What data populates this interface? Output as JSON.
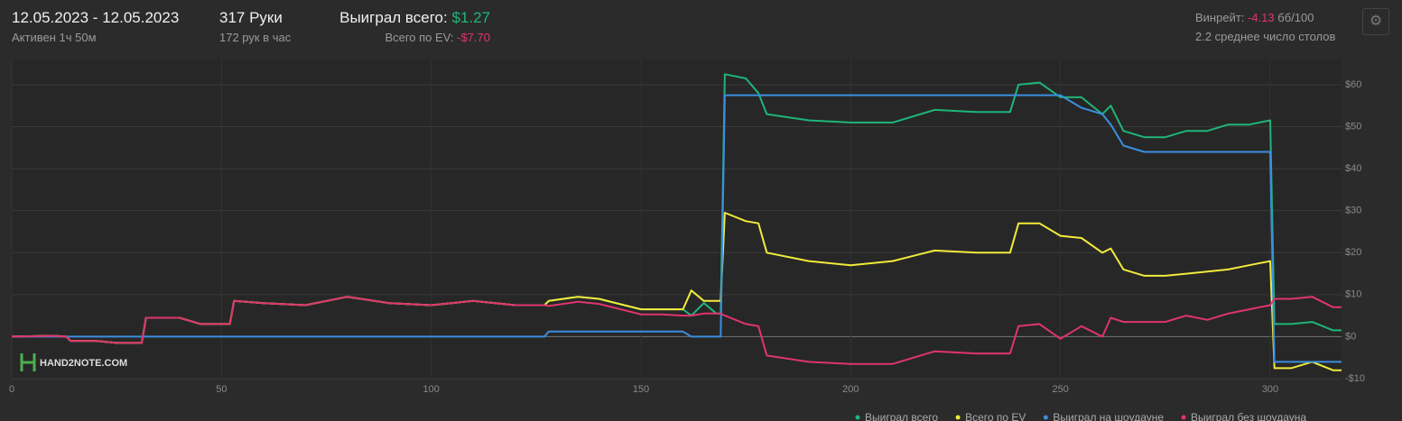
{
  "header": {
    "date_range": "12.05.2023 - 12.05.2023",
    "active": "Активен 1ч 50м",
    "hands": "317 Руки",
    "hands_per_hour": "172 рук в час",
    "won_label": "Выиграл всего:",
    "won_value": "$1.27",
    "ev_label": "Всего по EV:",
    "ev_value": "-$7.70",
    "winrate_label": "Винрейт:",
    "winrate_value": "-4.13",
    "winrate_unit": "бб/100",
    "tables": "2.2 среднее число столов"
  },
  "logo": "HAND2NOTE.COM",
  "chart_data": {
    "type": "line",
    "grid": true,
    "xlim": [
      0,
      317
    ],
    "xticks": [
      0,
      50,
      100,
      150,
      200,
      250,
      300
    ],
    "ylim": [
      -10,
      66
    ],
    "yticks": [
      {
        "value": -10,
        "label": "-$10"
      },
      {
        "value": 0,
        "label": "$0"
      },
      {
        "value": 10,
        "label": "$10"
      },
      {
        "value": 20,
        "label": "$20"
      },
      {
        "value": 30,
        "label": "$30"
      },
      {
        "value": 40,
        "label": "$40"
      },
      {
        "value": 50,
        "label": "$50"
      },
      {
        "value": 60,
        "label": "$60"
      }
    ],
    "x": [
      0,
      10,
      13,
      14,
      20,
      25,
      30,
      31,
      32,
      40,
      45,
      50,
      52,
      53,
      60,
      70,
      80,
      90,
      100,
      110,
      120,
      127,
      128,
      135,
      140,
      150,
      155,
      160,
      162,
      165,
      168,
      169,
      170,
      175,
      178,
      180,
      190,
      200,
      210,
      220,
      230,
      238,
      240,
      245,
      250,
      255,
      260,
      262,
      265,
      270,
      275,
      280,
      285,
      290,
      295,
      300,
      301,
      305,
      310,
      315,
      317
    ],
    "series": [
      {
        "name": "Выиграл всего",
        "color": "#1fb57a",
        "values": [
          0,
          0.2,
          0,
          -1,
          -1,
          -1.5,
          -1.5,
          -1.5,
          4.5,
          4.5,
          3,
          3,
          3,
          8.5,
          8,
          7.5,
          9.5,
          8,
          7.5,
          8.5,
          7.5,
          7.5,
          8.5,
          9.5,
          9,
          6.5,
          6.5,
          6.5,
          5,
          8,
          5.5,
          5.5,
          62.5,
          61.5,
          58,
          53,
          51.5,
          51,
          51,
          54,
          53.5,
          53.5,
          60,
          60.5,
          57,
          57,
          53,
          55,
          49,
          47.5,
          47.5,
          49,
          49,
          50.5,
          50.5,
          51.5,
          3,
          3,
          3.5,
          1.5,
          1.5
        ]
      },
      {
        "name": "Всего по EV",
        "color": "#f2ea3b",
        "values": [
          0,
          0.2,
          0,
          -1,
          -1,
          -1.5,
          -1.5,
          -1.5,
          4.5,
          4.5,
          3,
          3,
          3,
          8.5,
          8,
          7.5,
          9.5,
          8,
          7.5,
          8.5,
          7.5,
          7.5,
          8.5,
          9.5,
          9,
          6.5,
          6.5,
          6.5,
          11,
          8.5,
          8.5,
          8.5,
          29.5,
          27.5,
          27,
          20,
          18,
          17,
          18,
          20.5,
          20,
          20,
          27,
          27,
          24,
          23.5,
          20,
          21,
          16,
          14.5,
          14.5,
          15,
          15.5,
          16,
          17,
          18,
          -7.5,
          -7.5,
          -6,
          -8,
          -8
        ]
      },
      {
        "name": "Выиграл на шоудауне",
        "color": "#3a8fe0",
        "values": [
          0,
          0,
          0,
          0,
          0,
          0,
          0,
          0,
          0,
          0,
          0,
          0,
          0,
          0,
          0,
          0,
          0,
          0,
          0,
          0,
          0,
          0,
          1.2,
          1.2,
          1.2,
          1.2,
          1.2,
          1.2,
          0,
          0,
          0,
          0,
          57.5,
          57.5,
          57.5,
          57.5,
          57.5,
          57.5,
          57.5,
          57.5,
          57.5,
          57.5,
          57.5,
          57.5,
          57.5,
          54.5,
          53,
          50.5,
          45.5,
          44,
          44,
          44,
          44,
          44,
          44,
          44,
          -6,
          -6,
          -6,
          -6,
          -6
        ]
      },
      {
        "name": "Выиграл без шоудауна",
        "color": "#e0346e",
        "values": [
          0,
          0.2,
          0,
          -1,
          -1,
          -1.5,
          -1.5,
          -1.5,
          4.5,
          4.5,
          3,
          3,
          3,
          8.5,
          8,
          7.5,
          9.5,
          8,
          7.5,
          8.5,
          7.5,
          7.5,
          7.3,
          8.3,
          7.8,
          5.3,
          5.3,
          5,
          5,
          5.5,
          5.5,
          5.5,
          5,
          3,
          2.5,
          -4.5,
          -6,
          -6.5,
          -6.5,
          -3.5,
          -4,
          -4,
          2.5,
          3,
          -0.5,
          2.5,
          0,
          4.5,
          3.5,
          3.5,
          3.5,
          5,
          4,
          5.5,
          6.5,
          7.5,
          9,
          9,
          9.5,
          7,
          7
        ]
      }
    ]
  }
}
